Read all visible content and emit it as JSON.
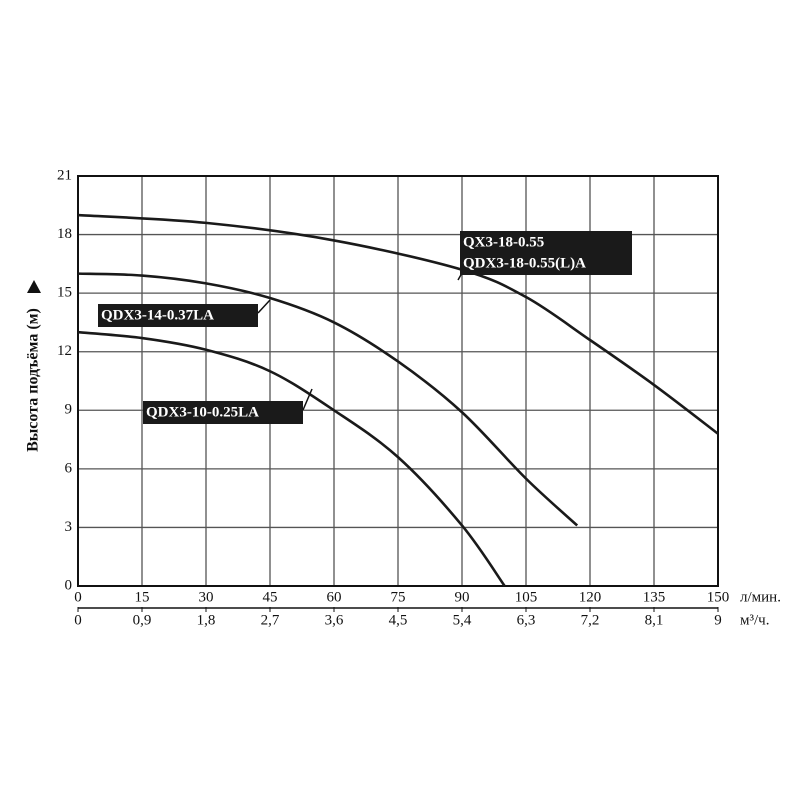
{
  "chart_data": {
    "type": "line",
    "ylabel": "Высота подъёма (м)",
    "xunit": "л/мин.",
    "x2unit": "м³/ч.",
    "xlim": [
      0,
      150
    ],
    "xticks": [
      0,
      15,
      30,
      45,
      60,
      75,
      90,
      105,
      120,
      135,
      150
    ],
    "x2lim": [
      0,
      9
    ],
    "x2ticks": [
      0,
      {
        "value": 0.9,
        "label": "0,9"
      },
      {
        "value": 1.8,
        "label": "1,8"
      },
      {
        "value": 2.7,
        "label": "2,7"
      },
      {
        "value": 3.6,
        "label": "3,6"
      },
      {
        "value": 4.5,
        "label": "4,5"
      },
      {
        "value": 5.4,
        "label": "5,4"
      },
      {
        "value": 6.3,
        "label": "6,3"
      },
      {
        "value": 7.2,
        "label": "7,2"
      },
      {
        "value": 8.1,
        "label": "8,1"
      },
      9
    ],
    "ylim": [
      0,
      21
    ],
    "yticks": [
      0,
      3,
      6,
      9,
      12,
      15,
      18,
      21
    ],
    "grid": true,
    "series": [
      {
        "labels": [
          "QX3-18-0.55",
          "QDX3-18-0.55(L)A"
        ],
        "color": "#1a1a1a",
        "x": [
          0,
          30,
          60,
          90,
          105,
          120,
          135,
          150
        ],
        "values": [
          19,
          18.6,
          17.7,
          16.2,
          14.8,
          12.6,
          10.3,
          7.8
        ]
      },
      {
        "labels": [
          "QDX3-14-0.37LA"
        ],
        "color": "#1a1a1a",
        "x": [
          0,
          15,
          30,
          45,
          60,
          75,
          90,
          105,
          117
        ],
        "values": [
          16,
          15.9,
          15.5,
          14.75,
          13.5,
          11.5,
          8.9,
          5.5,
          3.1
        ]
      },
      {
        "labels": [
          "QDX3-10-0.25LA"
        ],
        "color": "#1a1a1a",
        "x": [
          0,
          15,
          30,
          45,
          60,
          75,
          90,
          100
        ],
        "values": [
          13,
          12.7,
          12.1,
          11,
          9,
          6.6,
          3.1,
          0
        ]
      }
    ]
  }
}
